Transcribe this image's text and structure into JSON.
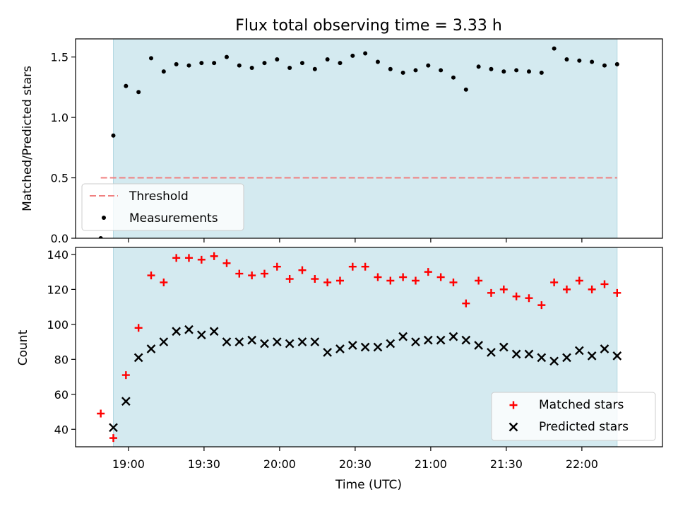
{
  "title": "Flux total observing time = 3.33 h",
  "colors": {
    "shade": "#d4eaf0",
    "shade_edge": "#b5d8e2",
    "threshold": "#f08080",
    "measurement": "#000000",
    "matched": "#ff0000",
    "predicted": "#000000"
  },
  "chart_data": [
    {
      "type": "scatter",
      "ylabel": "Matched/Predicted stars",
      "ylim": [
        0,
        1.65
      ],
      "yticks": [
        0.0,
        0.5,
        1.0,
        1.5
      ],
      "ytick_labels": [
        "0.0",
        "0.5",
        "1.0",
        "1.5"
      ],
      "xlim": [
        "18:39",
        "22:32"
      ],
      "xticks": [
        "19:00",
        "19:30",
        "20:00",
        "20:30",
        "21:00",
        "21:30",
        "22:00"
      ],
      "tick_labels_visible": false,
      "shaded_span": [
        "18:54",
        "22:14"
      ],
      "threshold": {
        "name": "Threshold",
        "value": 0.5,
        "x_range": [
          "18:49",
          "22:14"
        ],
        "style": "dashed"
      },
      "legend_position": "lower-left",
      "series": [
        {
          "name": "Measurements",
          "marker": "dot",
          "x": [
            "18:49",
            "18:54",
            "18:59",
            "19:04",
            "19:09",
            "19:14",
            "19:19",
            "19:24",
            "19:29",
            "19:34",
            "19:39",
            "19:44",
            "19:49",
            "19:54",
            "19:59",
            "20:04",
            "20:09",
            "20:14",
            "20:19",
            "20:24",
            "20:29",
            "20:34",
            "20:39",
            "20:44",
            "20:49",
            "20:54",
            "20:59",
            "21:04",
            "21:09",
            "21:14",
            "21:19",
            "21:24",
            "21:29",
            "21:34",
            "21:39",
            "21:44",
            "21:49",
            "21:54",
            "21:59",
            "22:04",
            "22:09",
            "22:14"
          ],
          "y": [
            0.0,
            0.85,
            1.26,
            1.21,
            1.49,
            1.38,
            1.44,
            1.43,
            1.45,
            1.45,
            1.5,
            1.43,
            1.41,
            1.45,
            1.48,
            1.41,
            1.45,
            1.4,
            1.48,
            1.45,
            1.51,
            1.53,
            1.46,
            1.4,
            1.37,
            1.39,
            1.43,
            1.39,
            1.33,
            1.23,
            1.42,
            1.4,
            1.38,
            1.39,
            1.38,
            1.37,
            1.57,
            1.48,
            1.47,
            1.46,
            1.43,
            1.44
          ]
        }
      ]
    },
    {
      "type": "scatter",
      "xlabel": "Time (UTC)",
      "ylabel": "Count",
      "ylim": [
        30,
        144
      ],
      "yticks": [
        40,
        60,
        80,
        100,
        120,
        140
      ],
      "ytick_labels": [
        "40",
        "60",
        "80",
        "100",
        "120",
        "140"
      ],
      "xlim": [
        "18:39",
        "22:32"
      ],
      "xticks": [
        "19:00",
        "19:30",
        "20:00",
        "20:30",
        "21:00",
        "21:30",
        "22:00"
      ],
      "xtick_labels": [
        "19:00",
        "19:30",
        "20:00",
        "20:30",
        "21:00",
        "21:30",
        "22:00"
      ],
      "shaded_span": [
        "18:54",
        "22:14"
      ],
      "legend_position": "lower-right",
      "series": [
        {
          "name": "Matched stars",
          "marker": "plus",
          "x": [
            "18:49",
            "18:54",
            "18:59",
            "19:04",
            "19:09",
            "19:14",
            "19:19",
            "19:24",
            "19:29",
            "19:34",
            "19:39",
            "19:44",
            "19:49",
            "19:54",
            "19:59",
            "20:04",
            "20:09",
            "20:14",
            "20:19",
            "20:24",
            "20:29",
            "20:34",
            "20:39",
            "20:44",
            "20:49",
            "20:54",
            "20:59",
            "21:04",
            "21:09",
            "21:14",
            "21:19",
            "21:24",
            "21:29",
            "21:34",
            "21:39",
            "21:44",
            "21:49",
            "21:54",
            "21:59",
            "22:04",
            "22:09",
            "22:14"
          ],
          "y": [
            49,
            35,
            71,
            98,
            128,
            124,
            138,
            138,
            137,
            139,
            135,
            129,
            128,
            129,
            133,
            126,
            131,
            126,
            124,
            125,
            133,
            133,
            127,
            125,
            127,
            125,
            130,
            127,
            124,
            112,
            125,
            118,
            120,
            116,
            115,
            111,
            124,
            120,
            125,
            120,
            123,
            118
          ]
        },
        {
          "name": "Predicted stars",
          "marker": "x",
          "x": [
            "18:54",
            "18:59",
            "19:04",
            "19:09",
            "19:14",
            "19:19",
            "19:24",
            "19:29",
            "19:34",
            "19:39",
            "19:44",
            "19:49",
            "19:54",
            "19:59",
            "20:04",
            "20:09",
            "20:14",
            "20:19",
            "20:24",
            "20:29",
            "20:34",
            "20:39",
            "20:44",
            "20:49",
            "20:54",
            "20:59",
            "21:04",
            "21:09",
            "21:14",
            "21:19",
            "21:24",
            "21:29",
            "21:34",
            "21:39",
            "21:44",
            "21:49",
            "21:54",
            "21:59",
            "22:04",
            "22:09",
            "22:14"
          ],
          "y": [
            41,
            56,
            81,
            86,
            90,
            96,
            97,
            94,
            96,
            90,
            90,
            91,
            89,
            90,
            89,
            90,
            90,
            84,
            86,
            88,
            87,
            87,
            89,
            93,
            90,
            91,
            91,
            93,
            91,
            88,
            84,
            87,
            83,
            83,
            81,
            79,
            81,
            85,
            82,
            86,
            82
          ]
        }
      ]
    }
  ]
}
